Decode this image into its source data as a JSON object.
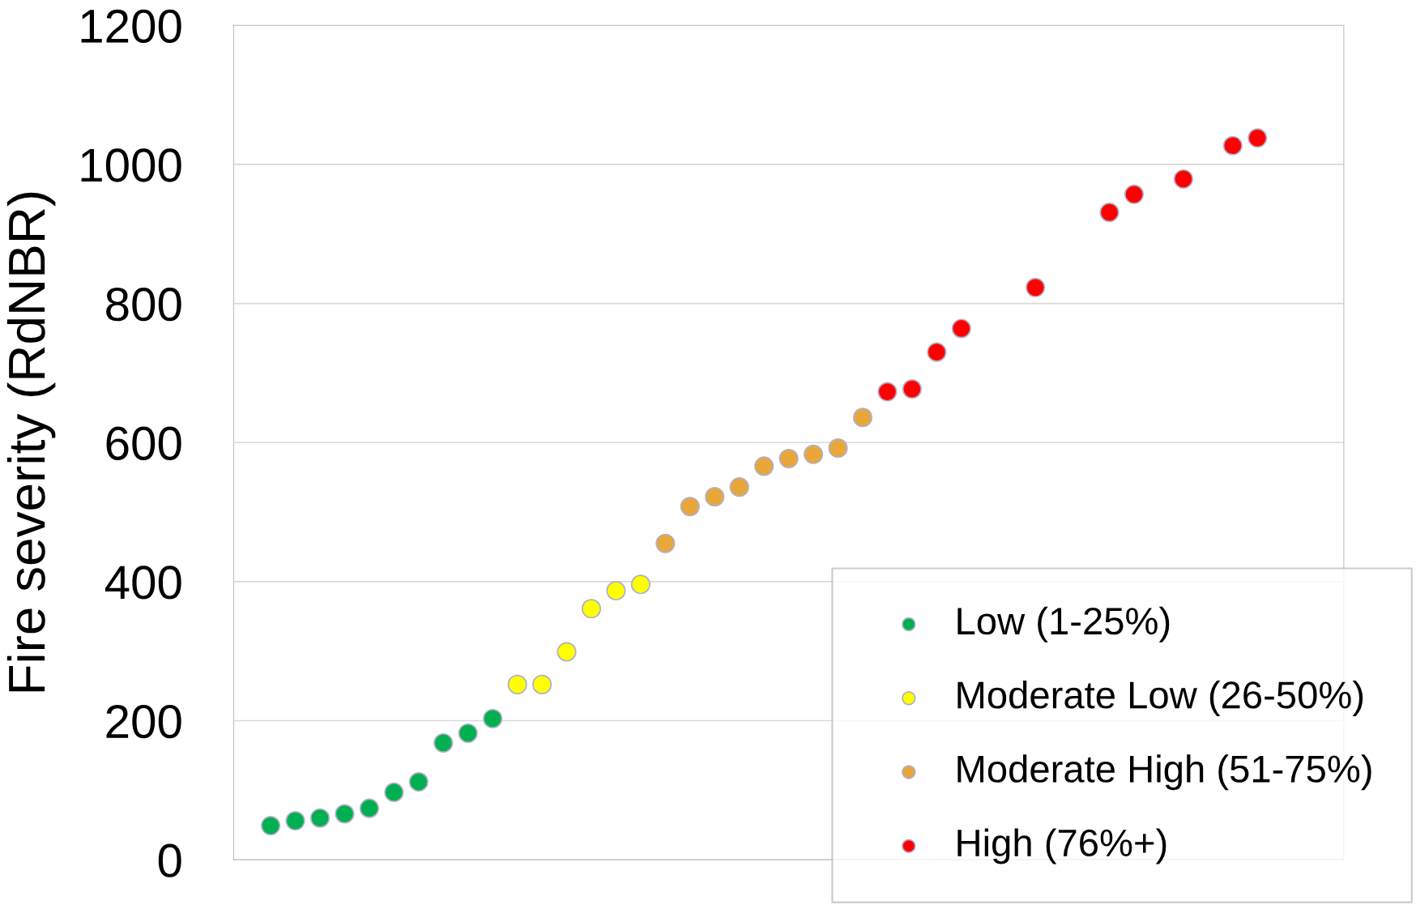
{
  "chart_data": {
    "type": "scatter",
    "ylabel": "Fire severity (RdNBR)",
    "categories": [
      null,
      null,
      null,
      null,
      null,
      null,
      null,
      null,
      null,
      null,
      null,
      null,
      null,
      null,
      null,
      null,
      null,
      null,
      null,
      null,
      null,
      null,
      null,
      null,
      null,
      null,
      null,
      null,
      null,
      null,
      null,
      null,
      null,
      null,
      null,
      null,
      null,
      null,
      null,
      null,
      null,
      null,
      null,
      null,
      null
    ],
    "series": [
      {
        "name": "Low (1-25%)",
        "color": "#00b050",
        "values": [
          null,
          49,
          56,
          60,
          66,
          74,
          97,
          112,
          168,
          182,
          203,
          null,
          null,
          null,
          null,
          null,
          null,
          null,
          null,
          null,
          null,
          null,
          null,
          null,
          null,
          null,
          null,
          null,
          null,
          null,
          null,
          null,
          null,
          null,
          null,
          null,
          null,
          null,
          null,
          null,
          null,
          null,
          null,
          null,
          null
        ]
      },
      {
        "name": "Moderate Low (26-50%)",
        "color": "#ffff00",
        "values": [
          null,
          null,
          null,
          null,
          null,
          null,
          null,
          null,
          null,
          null,
          null,
          252,
          252,
          299,
          361,
          387,
          396,
          null,
          null,
          null,
          null,
          null,
          null,
          null,
          null,
          null,
          null,
          null,
          null,
          null,
          null,
          null,
          null,
          null,
          null,
          null,
          null,
          null,
          null,
          null,
          null,
          null,
          null,
          null,
          null
        ]
      },
      {
        "name": "Moderate High (51-75%)",
        "color": "#e9a73a",
        "values": [
          null,
          null,
          null,
          null,
          null,
          null,
          null,
          null,
          null,
          null,
          null,
          null,
          null,
          null,
          null,
          null,
          null,
          455,
          508,
          522,
          536,
          566,
          577,
          583,
          592,
          636,
          null,
          null,
          null,
          null,
          null,
          null,
          null,
          null,
          null,
          null,
          null,
          null,
          null,
          null,
          null,
          null,
          null,
          null,
          null
        ]
      },
      {
        "name": "High (76%+)",
        "color": "#ff0000",
        "values": [
          null,
          null,
          null,
          null,
          null,
          null,
          null,
          null,
          null,
          null,
          null,
          null,
          null,
          null,
          null,
          null,
          null,
          null,
          null,
          null,
          null,
          null,
          null,
          null,
          null,
          null,
          673,
          677,
          730,
          764,
          null,
          null,
          823,
          null,
          null,
          931,
          957,
          null,
          979,
          null,
          1027,
          1038,
          null,
          null,
          null
        ]
      }
    ],
    "ylim": [
      0,
      1200
    ],
    "yticks": [
      0,
      200,
      400,
      600,
      800,
      1000,
      1200
    ],
    "grid": "y",
    "legend": "bottom right",
    "marker": "circle"
  }
}
